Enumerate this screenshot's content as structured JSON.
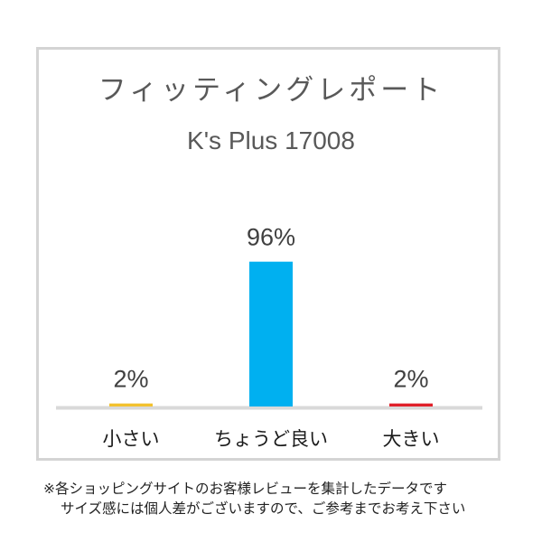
{
  "chart_data": {
    "type": "bar",
    "title": "フィッティングレポート",
    "subtitle": "K's Plus 17008",
    "categories": [
      "小さい",
      "ちょうど良い",
      "大きい"
    ],
    "values": [
      2,
      96,
      2
    ],
    "value_labels": [
      "2%",
      "96%",
      "2%"
    ],
    "unit": "%",
    "ylim": [
      0,
      100
    ],
    "colors": [
      "#f2c12e",
      "#00b0f0",
      "#e0202a"
    ],
    "grid": false,
    "legend": "none"
  },
  "footnote": {
    "line1": "※各ショッピングサイトのお客様レビューを集計したデータです",
    "line2": "サイズ感には個人差がございますので、ご参考までお考え下さい"
  }
}
